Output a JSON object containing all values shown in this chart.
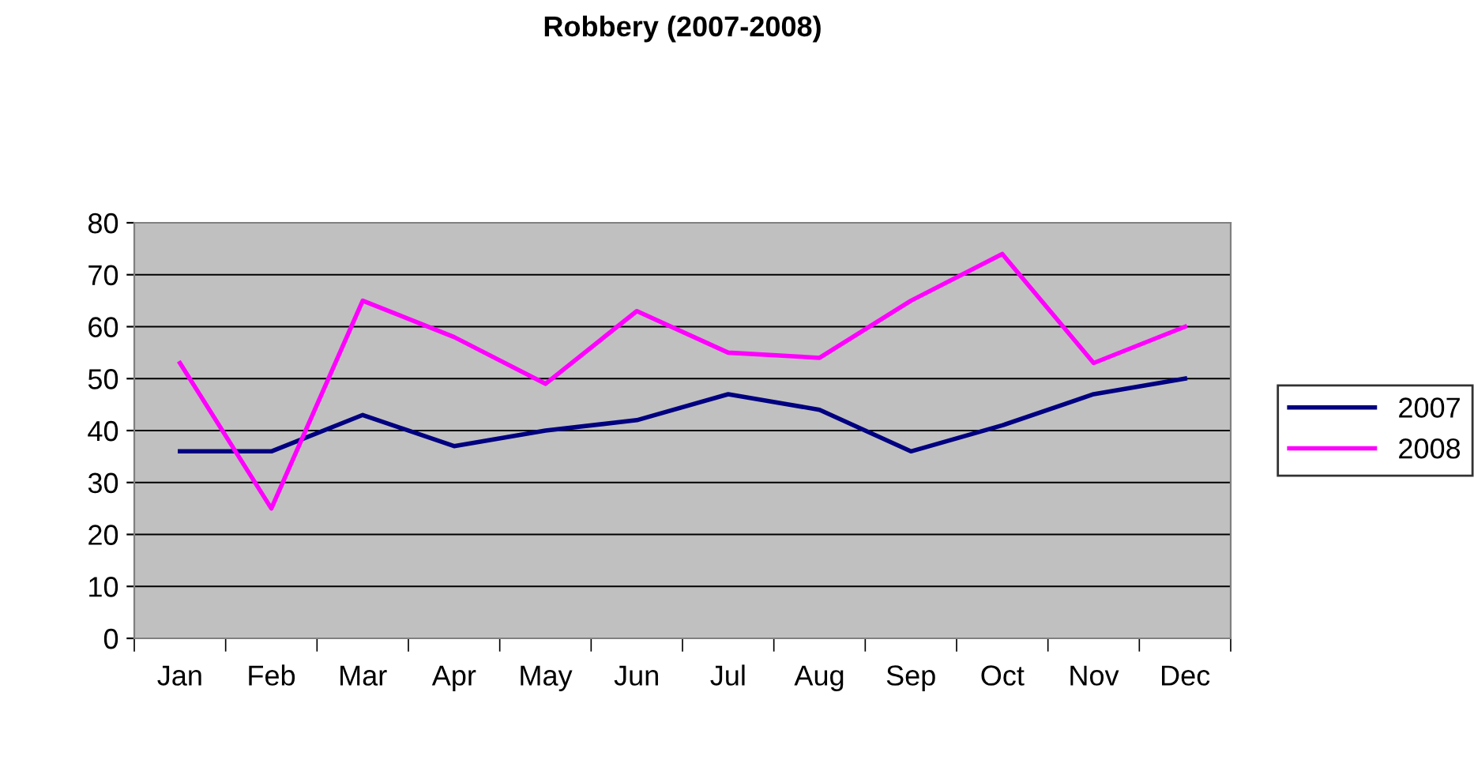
{
  "chart_data": {
    "type": "line",
    "title": "Robbery (2007-2008)",
    "categories": [
      "Jan",
      "Feb",
      "Mar",
      "Apr",
      "May",
      "Jun",
      "Jul",
      "Aug",
      "Sep",
      "Oct",
      "Nov",
      "Dec"
    ],
    "series": [
      {
        "name": "2007",
        "color": "#000080",
        "values": [
          36,
          36,
          43,
          37,
          40,
          42,
          47,
          44,
          36,
          41,
          47,
          50
        ]
      },
      {
        "name": "2008",
        "color": "#ff00ff",
        "values": [
          53,
          25,
          65,
          58,
          49,
          63,
          55,
          54,
          65,
          74,
          53,
          60
        ]
      }
    ],
    "ylim": [
      0,
      80
    ],
    "yticks": [
      0,
      10,
      20,
      30,
      40,
      50,
      60,
      70,
      80
    ],
    "grid": "y",
    "legend": "right",
    "marker": "none",
    "line_style": "solid"
  }
}
